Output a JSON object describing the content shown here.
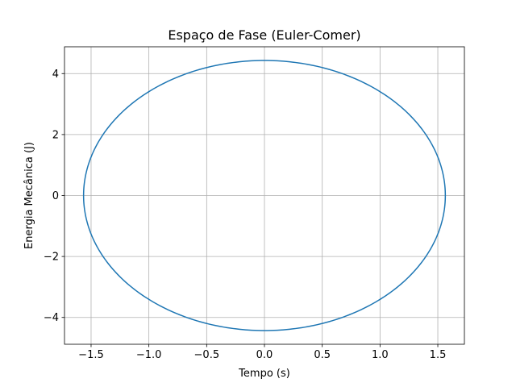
{
  "chart_data": {
    "type": "line",
    "title": "Espaço de Fase (Euler-Comer)",
    "xlabel": "Tempo (s)",
    "ylabel": "Energia Mecânica (J)",
    "xlim": [
      -1.73,
      1.73
    ],
    "ylim": [
      -4.88,
      4.88
    ],
    "xticks": [
      -1.5,
      -1.0,
      -0.5,
      0.0,
      0.5,
      1.0,
      1.5
    ],
    "xtick_labels": [
      "−1.5",
      "−1.0",
      "−0.5",
      "0.0",
      "0.5",
      "1.0",
      "1.5"
    ],
    "yticks": [
      -4,
      -2,
      0,
      2,
      4
    ],
    "ytick_labels": [
      "−4",
      "−2",
      "0",
      "2",
      "4"
    ],
    "grid": true,
    "line_color": "#1f77b4",
    "series": [
      {
        "shape": "closed-orbit",
        "x_amplitude": 1.565,
        "y_amplitude": 4.43
      }
    ]
  }
}
